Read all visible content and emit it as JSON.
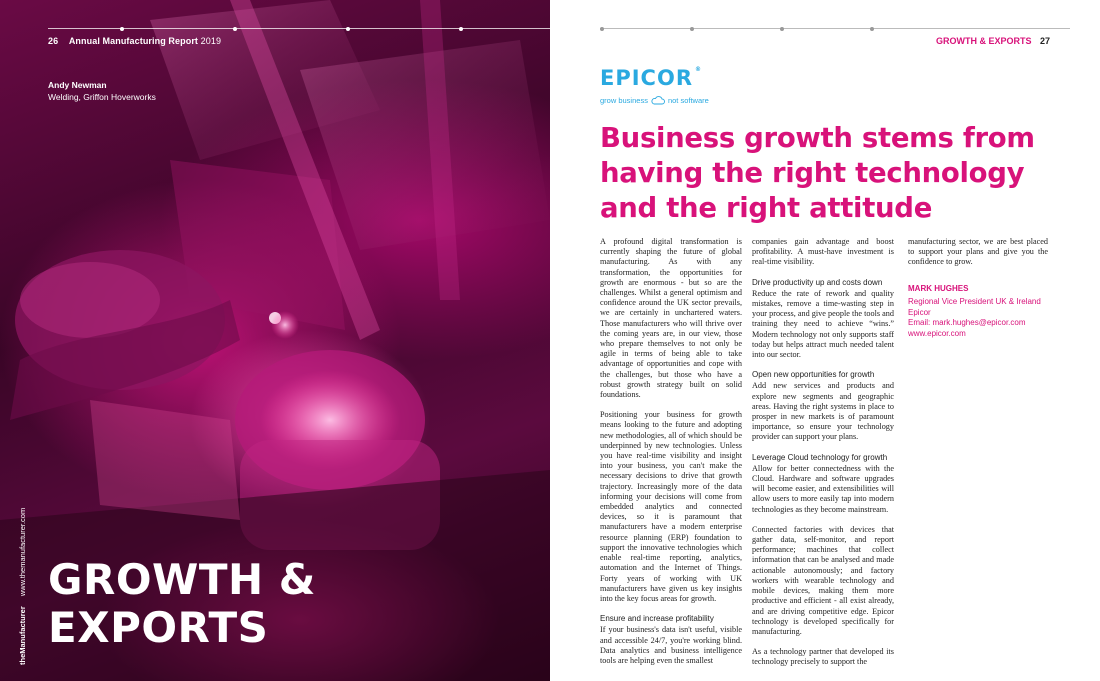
{
  "left": {
    "page_number": "26",
    "publication_title_bold": "Annual Manufacturing Report",
    "publication_year": "2019",
    "credit_name": "Andy Newman",
    "credit_role": "Welding, Griffon Hoverworks",
    "side_brand": "theManufacturer",
    "side_url": "www.themanufacturer.com",
    "title_line1": "GROWTH &",
    "title_line2": "EXPORTS"
  },
  "right": {
    "section_label": "GROWTH & EXPORTS",
    "page_number": "27",
    "logo_text": "EPICOR",
    "logo_reg": "®",
    "tagline_left": "grow business",
    "tagline_right": "not software",
    "headline": "Business growth stems from having the right technology and the right attitude",
    "col1": {
      "p1": "A profound digital transformation is currently shaping the future of global manufacturing. As with any transformation, the opportunities for growth are enormous - but so are the challenges. Whilst a general optimism and confidence around the UK sector prevails, we are certainly in unchartered waters. Those manufacturers who will thrive over the coming years are, in our view, those who prepare themselves to not only be agile in terms of being able to take advantage of opportunities and cope with the challenges, but those who have a robust growth strategy built on solid foundations.",
      "p2": "Positioning your business for growth means looking to the future and adopting new methodologies, all of which should be underpinned by new technologies. Unless you have real-time visibility and insight into your business, you can't make the necessary decisions to drive that growth trajectory. Increasingly more of the data informing your decisions will come from embedded analytics and connected devices, so it is paramount that manufacturers have a modern enterprise resource planning (ERP) foundation to support the innovative technologies which enable real-time reporting, analytics, automation and the Internet of Things. Forty years of working with UK manufacturers have given us key insights into the key focus areas for growth.",
      "h3": "Ensure and increase profitability",
      "p3": "If your business's data isn't useful, visible and accessible 24/7, you're working blind. Data analytics and business intelligence tools are helping even the smallest"
    },
    "col2": {
      "p1": "companies gain advantage and boost profitability. A must-have investment is real-time visibility.",
      "h2": "Drive productivity up and costs down",
      "p2": "Reduce the rate of rework and quality mistakes, remove a time-wasting step in your process, and give people the tools and training they need to achieve “wins.” Modern technology not only supports staff today but helps attract much needed talent into our sector.",
      "h3": "Open new opportunities for growth",
      "p3": "Add new services and products and explore new segments and geographic areas. Having the right systems in place to prosper in new markets is of paramount importance, so ensure your technology provider can support your plans.",
      "h4": "Leverage Cloud technology for growth",
      "p4": "Allow for better connectedness with the Cloud. Hardware and software upgrades will become easier, and extensibilities will allow users to more easily tap into modern technologies as they become mainstream.",
      "p5": "Connected factories with devices that gather data, self-monitor, and report performance; machines that collect information that can be analysed and made actionable autonomously; and factory workers with wearable technology and mobile devices, making them more productive and efficient - all exist already, and are driving competitive edge. Epicor technology is developed specifically for manufacturing.",
      "p6": "As a technology partner that developed its technology precisely to support the"
    },
    "col3": {
      "p1": "manufacturing sector, we are best placed to support your plans and give you the confidence to grow.",
      "sig_name": "MARK HUGHES",
      "sig_title": "Regional Vice President UK & Ireland",
      "sig_company": "Epicor",
      "sig_email": "Email: mark.hughes@epicor.com",
      "sig_web": "www.epicor.com"
    }
  },
  "colors": {
    "accent_magenta": "#d8127a",
    "epicor_blue": "#2aa9e0"
  }
}
